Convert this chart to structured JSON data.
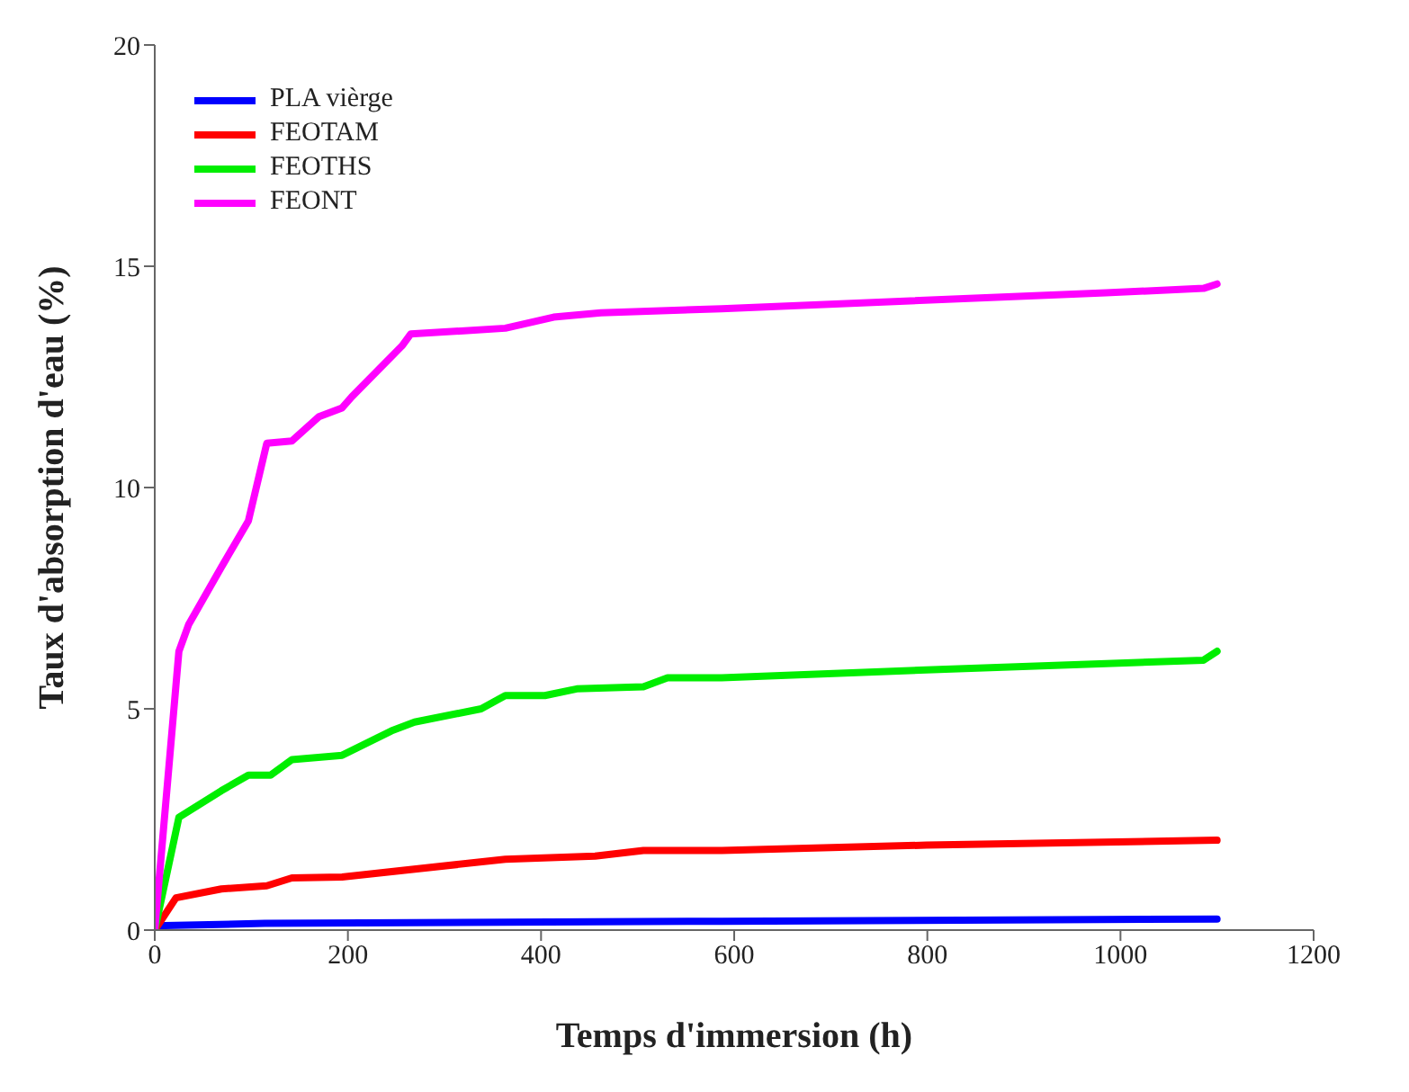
{
  "chart_data": {
    "type": "line",
    "xlabel": "Temps d'immersion (h)",
    "ylabel": "Taux d'absorption d'eau (%)",
    "xlim": [
      0,
      1200
    ],
    "xticks": [
      0,
      200,
      400,
      600,
      800,
      1000,
      1200
    ],
    "ylim": [
      0,
      20
    ],
    "yticks": [
      0,
      5,
      10,
      15,
      20
    ],
    "grid": false,
    "legend": "top left",
    "marker": "none",
    "line_style": "solid",
    "series": [
      {
        "name": "PLA vièrge",
        "color": "#0000ff",
        "x": [
          0,
          10,
          114,
          587,
          1100
        ],
        "values": [
          0,
          0.1,
          0.15,
          0.2,
          0.25
        ]
      },
      {
        "name": "FEOTAM",
        "color": "#ff0000",
        "x": [
          0,
          22,
          69,
          116,
          142,
          194,
          363,
          456,
          506,
          587,
          799,
          1100
        ],
        "values": [
          0,
          0.73,
          0.93,
          1.0,
          1.18,
          1.2,
          1.6,
          1.67,
          1.8,
          1.8,
          1.92,
          2.03
        ]
      },
      {
        "name": "FEOTHS",
        "color": "#00ee00",
        "x": [
          0,
          25,
          69,
          97,
          120,
          142,
          194,
          245,
          269,
          338,
          363,
          404,
          437,
          506,
          531,
          587,
          799,
          1086,
          1100
        ],
        "values": [
          0,
          2.55,
          3.15,
          3.5,
          3.5,
          3.85,
          3.95,
          4.5,
          4.7,
          5.0,
          5.3,
          5.3,
          5.45,
          5.5,
          5.7,
          5.7,
          5.88,
          6.1,
          6.3
        ]
      },
      {
        "name": "FEONT",
        "color": "#ff00ff",
        "x": [
          0,
          25,
          35,
          69,
          97,
          116,
          142,
          170,
          194,
          204,
          256,
          265,
          363,
          413,
          462,
          587,
          985,
          1086,
          1100
        ],
        "values": [
          0,
          6.3,
          6.9,
          8.2,
          9.25,
          11.0,
          11.05,
          11.6,
          11.8,
          12.05,
          13.2,
          13.47,
          13.6,
          13.85,
          13.95,
          14.04,
          14.4,
          14.5,
          14.6
        ]
      }
    ]
  }
}
